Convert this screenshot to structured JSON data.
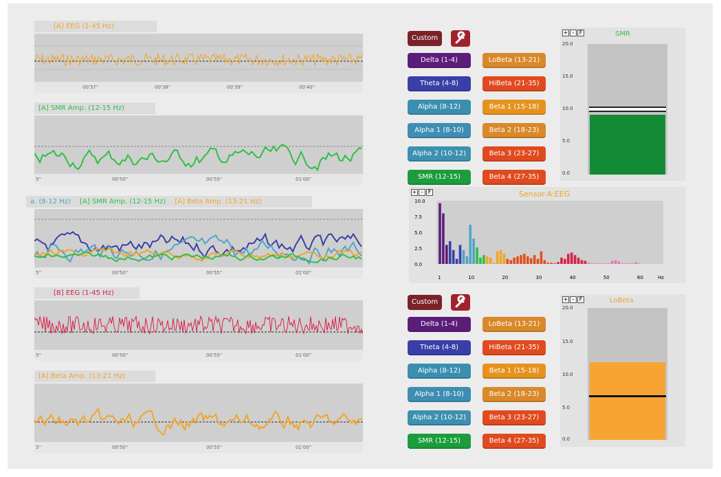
{
  "colors": {
    "eeg_a": "#f0a52b",
    "smr": "#2fbf45",
    "alpha": "#4ea5c9",
    "theta": "#3a3fa8",
    "beta": "#f0a52b",
    "eeg_b": "#d8234a",
    "delta": "#5b1d7a"
  },
  "left_panels": [
    {
      "title": "[A] EEG (1-45 Hz)",
      "times": [
        "00'37''",
        "00'38''",
        "00'39''",
        "00'40''"
      ]
    },
    {
      "title": "[A] SMR Amp. (12-15 Hz)",
      "times": [
        "5''",
        "00'50''",
        "00'55''",
        "01'00''"
      ]
    },
    {
      "title_parts": [
        "a. (8-12 Hz)",
        "[A] SMR Amp. (12-15 Hz)",
        "[A] Beta Amp. (13-21 Hz)"
      ],
      "times": [
        "5''",
        "00'50''",
        "00'55''",
        "01'00''"
      ]
    },
    {
      "title": "[B] EEG (1-45 Hz)",
      "times": [
        "5''",
        "00'50''",
        "00'55''",
        "01'00''"
      ]
    },
    {
      "title": "[A] Beta Amp. (13-21 Hz)",
      "times": [
        "5''",
        "00'50''",
        "00'55''",
        "01'00''"
      ]
    }
  ],
  "custom_label": "Custom",
  "bands_left": [
    "Delta (1-4)",
    "Theta (4-8)",
    "Alpha (8-12)",
    "Alpha 1 (8-10)",
    "Alpha 2 (10-12)",
    "SMR (12-15)"
  ],
  "bands_right": [
    "LoBeta (13-21)",
    "HiBeta (21-35)",
    "Beta 1 (15-18)",
    "Beta 2 (18-23)",
    "Beta 3 (23-27)",
    "Beta 4 (27-35)"
  ],
  "meter_top": {
    "title": "SMR",
    "ticks": [
      "20.0",
      "15.0",
      "10.0",
      "5.0",
      "0.0"
    ],
    "value": 9.2,
    "threshold": 9.6,
    "max": 20
  },
  "meter_bottom": {
    "title": "LoBeta",
    "ticks": [
      "20.0",
      "15.0",
      "10.0",
      "5.0",
      "0.0"
    ],
    "value": 11.8,
    "threshold": 6.5,
    "max": 20
  },
  "spectrum": {
    "title": "Sensor-A:EEG",
    "yticks": [
      "10.0",
      "7.5",
      "5.0",
      "2.5",
      "0.0"
    ],
    "xticks": [
      "1",
      "10",
      "20",
      "30",
      "40",
      "50",
      "60"
    ],
    "xunit": "Hz"
  }
}
